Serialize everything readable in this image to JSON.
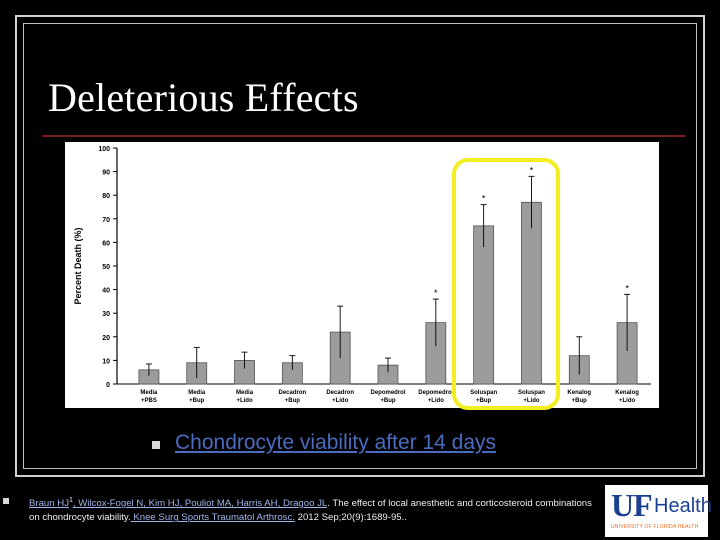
{
  "slide": {
    "title": "Deleterious Effects",
    "caption": "Chondrocyte viability after 14 days",
    "citation": {
      "authors_linked": "Braun HJ",
      "sup": "1",
      "authors_rest": ", Wilcox-Fogel N, Kim HJ, Pouliot MA, Harris AH, Dragoo JL",
      "text": ". The effect of local anesthetic and corticosteroid combinations on chondrocyte viability.",
      "journal": " Knee Surg Sports Traumatol Arthrosc.",
      "details": " 2012 Sep;20(9):1689-95.."
    }
  },
  "logo": {
    "uf": "UF",
    "health": "Health",
    "tagline": "UNIVERSITY OF FLORIDA HEALTH"
  },
  "colors": {
    "highlight": "#f3ee1f",
    "title_rule": "#7a1b1b",
    "caption": "#4a6bbf",
    "bar": "#9c9c9c"
  },
  "chart_data": {
    "type": "bar",
    "ylabel": "Percent Death (%)",
    "ylim": [
      0,
      100
    ],
    "yticks": [
      0,
      10,
      20,
      30,
      40,
      50,
      60,
      70,
      80,
      90,
      100
    ],
    "categories": [
      [
        "Media",
        "+PBS"
      ],
      [
        "Media",
        "+Bup"
      ],
      [
        "Media",
        "+Lido"
      ],
      [
        "Decadron",
        "+Bup"
      ],
      [
        "Decadron",
        "+Lido"
      ],
      [
        "Depomedrol",
        "+Bup"
      ],
      [
        "Depomedrol",
        "+Lido"
      ],
      [
        "Soluspan",
        "+Bup"
      ],
      [
        "Soluspan",
        "+Lido"
      ],
      [
        "Kenalog",
        "+Bup"
      ],
      [
        "Kenalog",
        "+Lido"
      ]
    ],
    "values": [
      6,
      9,
      10,
      9,
      22,
      8,
      26,
      67,
      77,
      12,
      26
    ],
    "errors": [
      2.5,
      6.5,
      3.5,
      3,
      11,
      3,
      10,
      9,
      11,
      8,
      12
    ],
    "significant": [
      false,
      false,
      false,
      false,
      false,
      false,
      true,
      true,
      true,
      false,
      true
    ],
    "annotations": {
      "significance_marker": "*"
    },
    "highlighted": [
      7,
      8
    ]
  }
}
